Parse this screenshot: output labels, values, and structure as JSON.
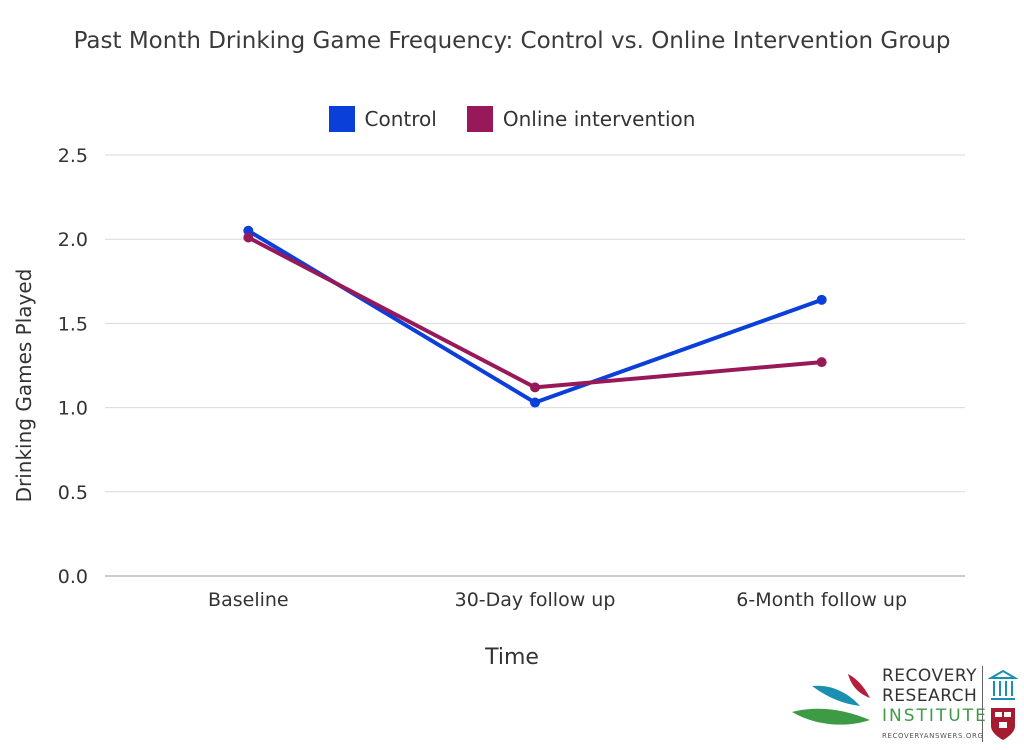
{
  "chart_data": {
    "type": "line",
    "title": "Past Month Drinking Game Frequency: Control vs. Online Intervention Group",
    "xlabel": "Time",
    "ylabel": "Drinking Games Played",
    "categories": [
      "Baseline",
      "30-Day follow up",
      "6-Month follow up"
    ],
    "ylim": [
      0,
      2.5
    ],
    "yticks": [
      "0.0",
      "0.5",
      "1.0",
      "1.5",
      "2.0",
      "2.5"
    ],
    "grid": true,
    "legend_position": "top-center",
    "series": [
      {
        "name": "Control",
        "color": "#0a3fd9",
        "values": [
          2.05,
          1.03,
          1.64
        ]
      },
      {
        "name": "Online intervention",
        "color": "#97195a",
        "values": [
          2.01,
          1.12,
          1.27
        ]
      }
    ]
  },
  "logo": {
    "line1": "RECOVERY",
    "line2": "RESEARCH",
    "line3": "INSTITUTE",
    "url": "RECOVERYANSWERS.ORG",
    "colors": {
      "teal": "#1a8fb0",
      "red": "#b51e3c",
      "green": "#3e9b45"
    }
  }
}
